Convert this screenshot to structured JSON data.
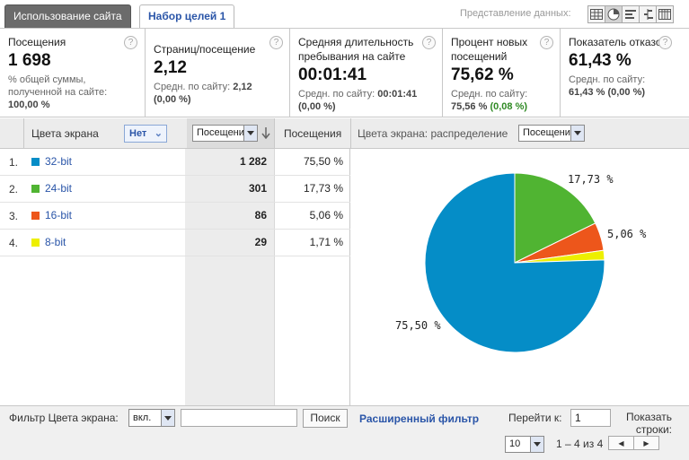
{
  "tabs": [
    {
      "label": "Использование сайта",
      "active": true
    },
    {
      "label": "Набор целей 1",
      "active": false
    }
  ],
  "view": {
    "label": "Представление данных:",
    "buttons": [
      "table-view-icon",
      "pie-view-icon",
      "performance-view-icon",
      "comparison-view-icon",
      "pivot-view-icon"
    ],
    "selected": "pie-view-icon"
  },
  "metrics": [
    {
      "label": "Посещения",
      "value": "1 698",
      "sub": "% общей суммы, полученной на сайте:",
      "sub_value": "100,00 %",
      "help": "?"
    },
    {
      "label": "Страниц/посещение",
      "value": "2,12",
      "sub": "Средн. по сайту:",
      "sub_value": "2,12",
      "delta": "(0,00 %)",
      "help": "?"
    },
    {
      "label": "Средняя длительность пребывания на сайте",
      "value": "00:01:41",
      "sub": "Средн. по сайту:",
      "sub_value": "00:01:41",
      "delta": "(0,00 %)",
      "help": "?"
    },
    {
      "label": "Процент новых посещений",
      "value": "75,62 %",
      "sub": "Средн. по сайту:",
      "sub_value": "75,56 %",
      "delta": "(0,08 %)",
      "help": "?"
    },
    {
      "label": "Показатель отказов",
      "value": "61,43 %",
      "sub": "Средн. по сайту:",
      "sub_value": "61,43 %",
      "delta": "(0,00 %)",
      "help": "?"
    }
  ],
  "table": {
    "dimension_header": "Цвета экрана",
    "secondary_btn": "Нет",
    "sort_select": "Посещения",
    "visits_header": "Посещения",
    "pie_header": "Цвета экрана: распределение",
    "pie_select": "Посещения",
    "rows": [
      {
        "num": "1.",
        "name": "32-bit",
        "visits": "1 282",
        "pct": "75,50 %",
        "color": "#058dc7"
      },
      {
        "num": "2.",
        "name": "24-bit",
        "visits": "301",
        "pct": "17,73 %",
        "color": "#50b432"
      },
      {
        "num": "3.",
        "name": "16-bit",
        "visits": "86",
        "pct": "5,06 %",
        "color": "#ed561b"
      },
      {
        "num": "4.",
        "name": "8-bit",
        "visits": "29",
        "pct": "1,71 %",
        "color": "#edef00"
      }
    ]
  },
  "chart_data": {
    "type": "pie",
    "categories": [
      "32-bit",
      "24-bit",
      "16-bit",
      "8-bit"
    ],
    "values": [
      75.5,
      17.73,
      5.06,
      1.71
    ],
    "colors": [
      "#058dc7",
      "#50b432",
      "#ed561b",
      "#edef00"
    ],
    "labels": [
      "75,50 %",
      "17,73 %",
      "5,06 %",
      ""
    ]
  },
  "footer": {
    "filter_label": "Фильтр Цвета экрана:",
    "filter_mode": "вкл.",
    "filter_value": "",
    "search_btn": "Поиск",
    "advanced_filter": "Расширенный фильтр",
    "goto_label": "Перейти к:",
    "goto_value": "1",
    "rows_label": "Показать строки:",
    "rows_value": "10",
    "range": "1 – 4 из 4"
  }
}
